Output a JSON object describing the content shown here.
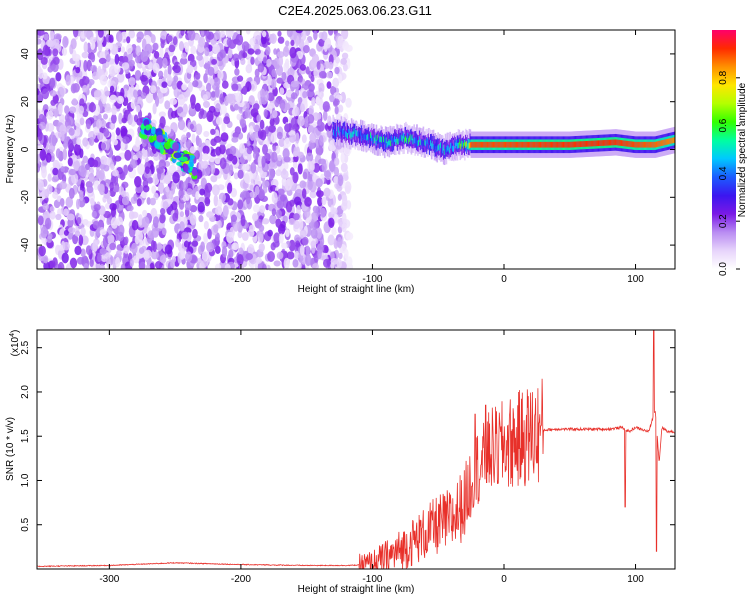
{
  "chart_data": [
    {
      "type": "heatmap",
      "title": "C2E4.2025.063.06.23.G11",
      "xlabel": "Height of straight line (km)",
      "ylabel": "Frequency (Hz)",
      "xlim": [
        -355,
        130
      ],
      "ylim": [
        -50,
        50
      ],
      "x_ticks": [
        -300,
        -200,
        -100,
        0,
        100
      ],
      "y_ticks": [
        -40,
        -20,
        0,
        20,
        40
      ],
      "grid": false,
      "colorbar": {
        "label": "Normalized spectral amplitude",
        "range": [
          0.0,
          1.0
        ],
        "ticks": [
          0.0,
          0.2,
          0.4,
          0.6,
          0.8
        ],
        "colors": [
          "#ffffff",
          "#e7d4fb",
          "#b98cf2",
          "#7a19e6",
          "#3b16f0",
          "#1c5cff",
          "#00c8ff",
          "#00ffa0",
          "#33ff00",
          "#b4ff00",
          "#ffe600",
          "#ff9000",
          "#ff2a00",
          "#ff006a"
        ]
      },
      "features": [
        {
          "kind": "noise",
          "x_range": [
            -355,
            -115
          ],
          "f_range": [
            -50,
            50
          ],
          "amplitude": 0.2
        },
        {
          "kind": "blob",
          "x_range": [
            -275,
            -235
          ],
          "f_range": [
            -8,
            10
          ],
          "amplitude": 0.5
        },
        {
          "kind": "tone_track",
          "x": [
            -130,
            -110,
            -90,
            -75,
            -60,
            -45,
            -35,
            -25,
            0,
            50,
            85,
            100,
            115,
            130
          ],
          "f": [
            8,
            6,
            3,
            5,
            3,
            0,
            2,
            2,
            2,
            2,
            3,
            2,
            2,
            4
          ],
          "peak_amplitude": [
            0.45,
            0.5,
            0.55,
            0.55,
            0.5,
            0.5,
            0.55,
            0.9,
            0.9,
            0.92,
            0.92,
            0.9,
            0.88,
            0.85
          ]
        }
      ]
    },
    {
      "type": "line",
      "title": "",
      "xlabel": "Height of straight line (km)",
      "ylabel": "SNR (10 * v/v)",
      "multiplier_label": "(x10",
      "multiplier_exponent": "4",
      "multiplier_close": ")",
      "xlim": [
        -355,
        130
      ],
      "ylim": [
        0,
        2.7
      ],
      "x_ticks": [
        -300,
        -200,
        -100,
        0,
        100
      ],
      "y_ticks": [
        0.5,
        1.0,
        1.5,
        2.0,
        2.5
      ],
      "grid": false,
      "series": [
        {
          "color": "#e8302a",
          "x": [
            -355,
            -300,
            -250,
            -200,
            -150,
            -120,
            -100,
            -90,
            -80,
            -70,
            -60,
            -50,
            -40,
            -30,
            -25,
            -20,
            -15,
            -10,
            -5,
            0,
            10,
            20,
            30,
            40,
            60,
            80,
            90,
            95,
            100,
            110,
            115,
            118,
            120,
            125,
            130
          ],
          "y": [
            0.03,
            0.04,
            0.07,
            0.05,
            0.04,
            0.04,
            0.05,
            0.12,
            0.2,
            0.3,
            0.4,
            0.5,
            0.55,
            0.75,
            1.0,
            1.15,
            1.2,
            1.35,
            1.35,
            1.4,
            1.45,
            1.52,
            1.57,
            1.58,
            1.58,
            1.58,
            1.6,
            1.55,
            1.6,
            1.55,
            1.8,
            1.2,
            1.6,
            1.55,
            1.55
          ],
          "spikes": [
            {
              "x": -14,
              "y": 1.85
            },
            {
              "x": -22,
              "y": 1.75
            },
            {
              "x": 92,
              "y": 0.7
            },
            {
              "x": 114,
              "y": 2.75
            },
            {
              "x": 116,
              "y": 0.2
            }
          ]
        }
      ]
    }
  ]
}
